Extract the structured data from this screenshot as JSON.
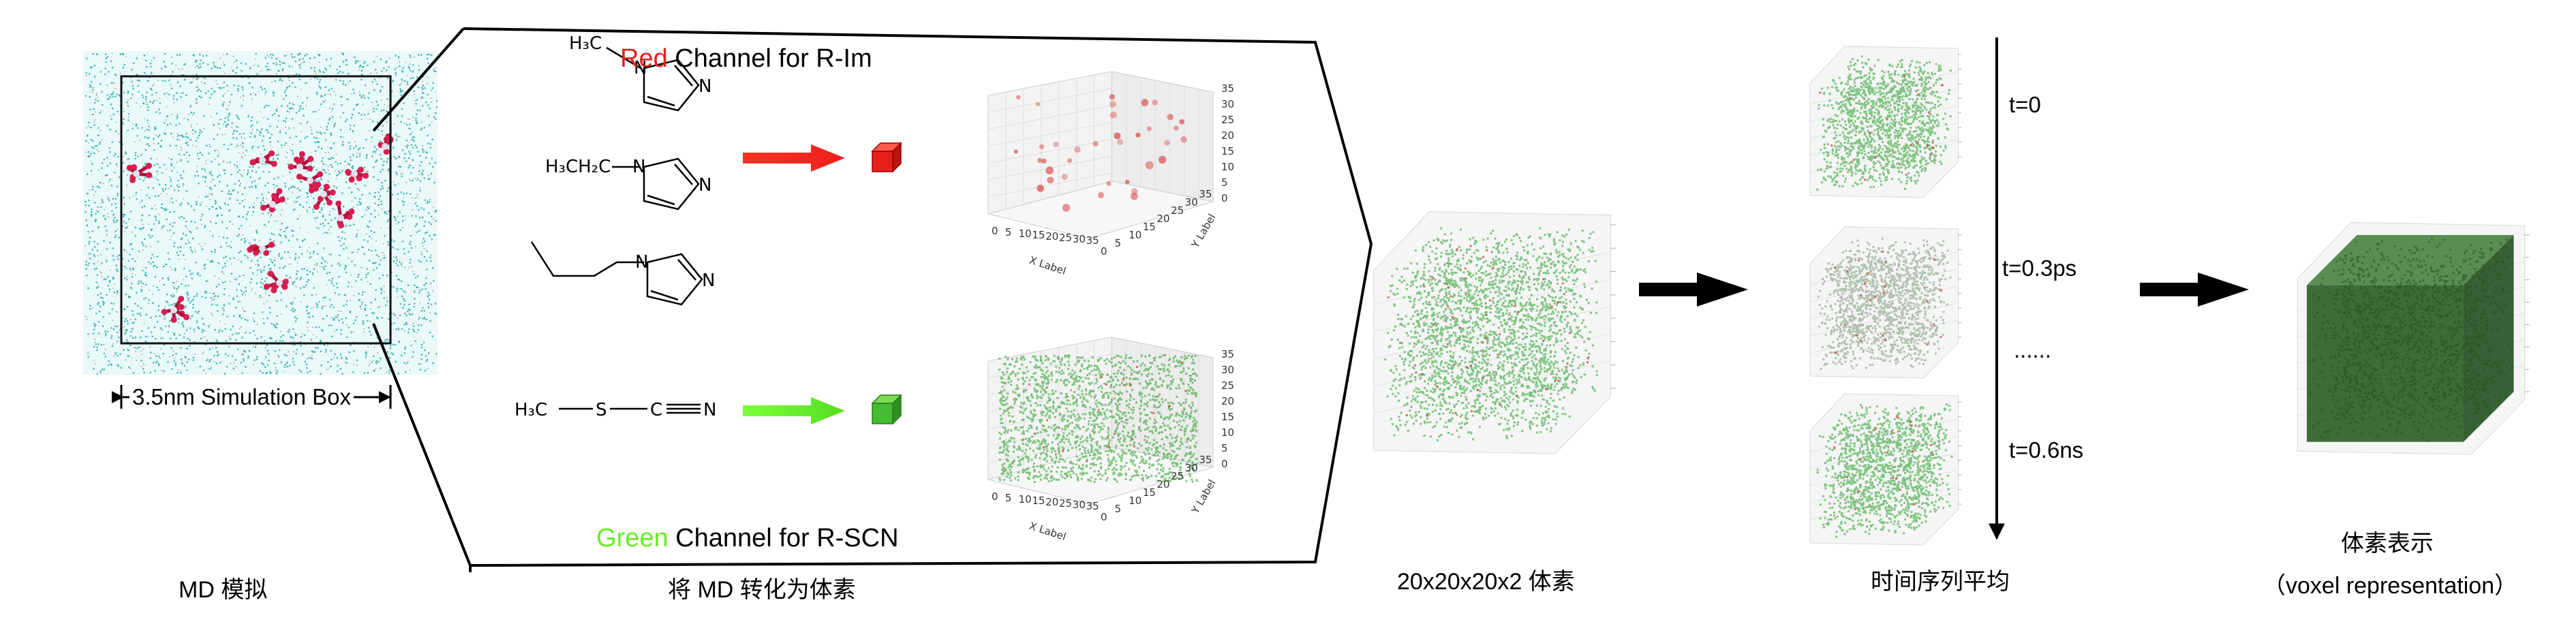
{
  "md_panel": {
    "box_label": "3.5nm Simulation Box",
    "caption": "MD 模拟"
  },
  "conversion": {
    "red_word": "Red",
    "red_rest": " Channel for R-Im",
    "green_word": "Green",
    "green_rest": " Channel for R-SCN",
    "caption": "将 MD 转化为体素",
    "red_color": "#e8201c",
    "green_color": "#66ee22",
    "mol_methyl_label": "H₃C",
    "mol_ethyl_label": "H₃CH₂C",
    "mol_scn_h3c": "H₃C",
    "mol_scn_s": "S",
    "mol_scn_c": "C",
    "mol_scn_n": "N",
    "ring_n": "N",
    "red_plot": {
      "ticks_z": [
        "0",
        "5",
        "10",
        "15",
        "20",
        "25",
        "30",
        "35"
      ],
      "ticks_x": [
        "0",
        "5",
        "10",
        "15",
        "20",
        "25",
        "30",
        "35"
      ],
      "ticks_y": [
        "0",
        "5",
        "10",
        "15",
        "20",
        "25",
        "30",
        "35"
      ],
      "x_label": "X Label",
      "y_label": "Y Label"
    },
    "green_plot": {
      "ticks_z": [
        "0",
        "5",
        "10",
        "15",
        "20",
        "25",
        "30",
        "35"
      ],
      "ticks_x": [
        "0",
        "5",
        "10",
        "15",
        "20",
        "25",
        "30",
        "35"
      ],
      "ticks_y": [
        "0",
        "5",
        "10",
        "15",
        "20",
        "25",
        "30",
        "35"
      ],
      "x_label": "X Label",
      "y_label": "Y Label"
    }
  },
  "voxel_grid": {
    "caption": "20x20x20x2 体素"
  },
  "time_series": {
    "labels": [
      "t=0",
      "t=0.3ps",
      "......",
      "t=0.6ns"
    ],
    "caption": "时间序列平均"
  },
  "result": {
    "caption_line1": "体素表示",
    "caption_line2": "（voxel representation）"
  }
}
